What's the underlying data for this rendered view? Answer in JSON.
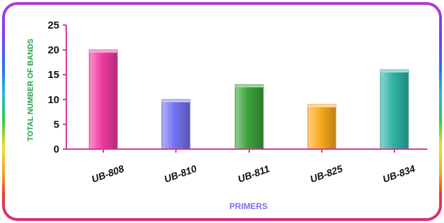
{
  "chart_data": {
    "type": "bar",
    "categories": [
      "UB-808",
      "UB-810",
      "UB-811",
      "UB-825",
      "UB-834"
    ],
    "values": [
      20,
      10,
      13,
      9,
      16
    ],
    "xlabel": "PRIMERS",
    "ylabel": "TOTAL NUMBER OF BANDS",
    "ylim": [
      0,
      25
    ],
    "yticks": [
      0,
      5,
      10,
      15,
      20,
      25
    ],
    "grid": false,
    "legend": "none",
    "bar_colors": [
      "#f03aa0",
      "#7272f2",
      "#3aa23a",
      "#f9a91c",
      "#2fb3a6"
    ],
    "axis_color": "#d63a9a"
  }
}
